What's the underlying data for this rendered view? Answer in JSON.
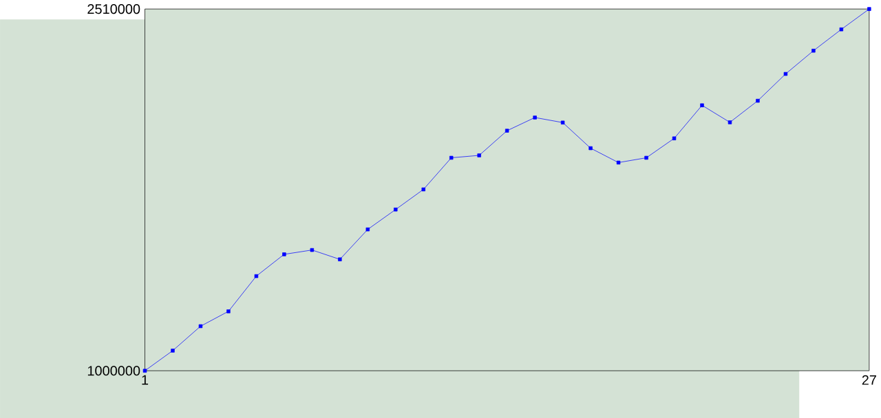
{
  "chart_data": {
    "type": "line",
    "x": [
      1,
      2,
      3,
      4,
      5,
      6,
      7,
      8,
      9,
      10,
      11,
      12,
      13,
      14,
      15,
      16,
      17,
      18,
      19,
      20,
      21,
      22,
      23,
      24,
      25,
      26,
      27
    ],
    "series": [
      {
        "color": "#0000ff",
        "values": [
          1000000,
          1084000,
          1186000,
          1248000,
          1395000,
          1486000,
          1504000,
          1465000,
          1590000,
          1673000,
          1757000,
          1889000,
          1899000,
          2002000,
          2057000,
          2036000,
          1929000,
          1869000,
          1889000,
          1970000,
          2108000,
          2037000,
          2127000,
          2239000,
          2336000,
          2425000,
          2510000
        ]
      }
    ],
    "xlim": [
      1,
      27
    ],
    "ylim": [
      1000000,
      2510000
    ],
    "xticks": [
      1,
      27
    ],
    "yticks": [
      1000000,
      2510000
    ],
    "marker": "square",
    "line_style": "solid"
  }
}
